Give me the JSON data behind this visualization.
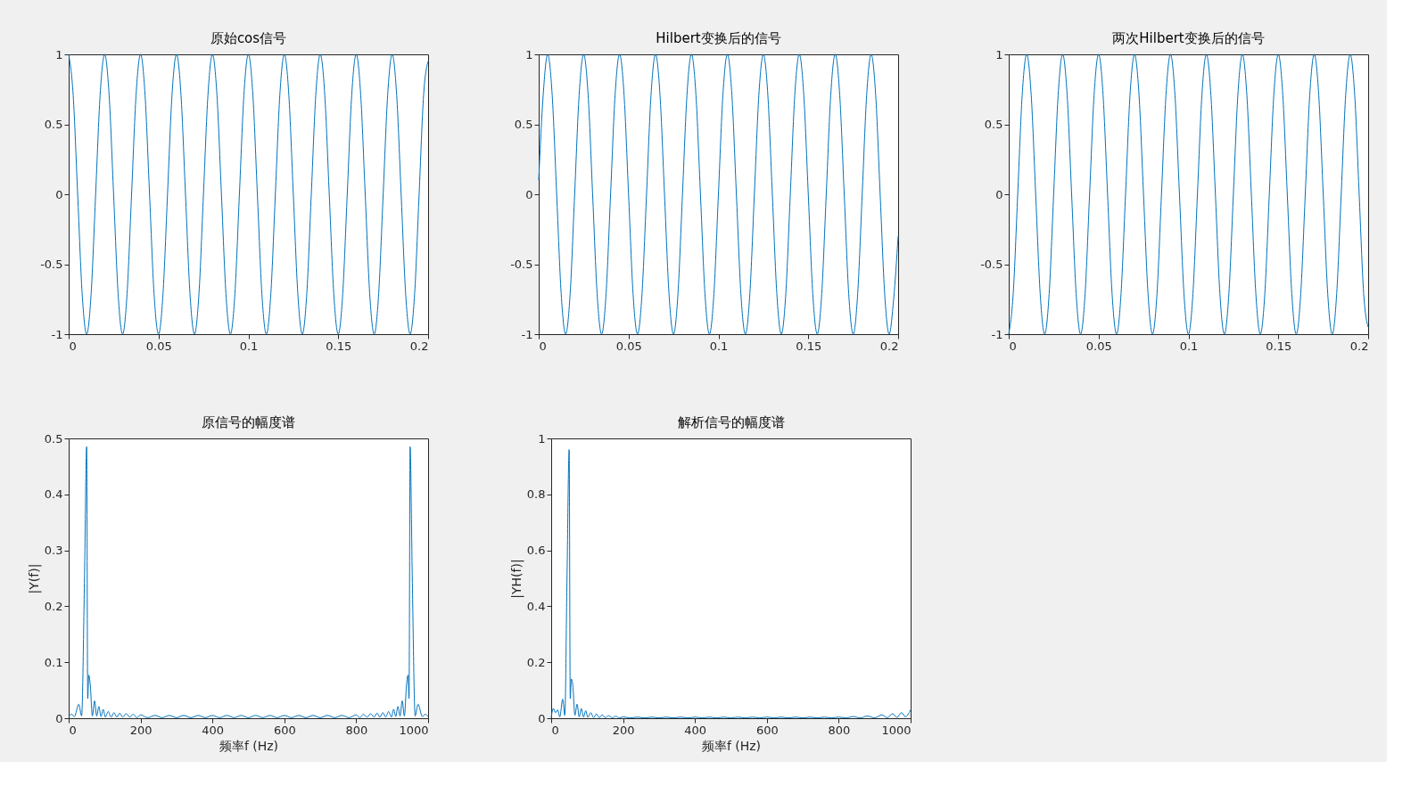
{
  "chart_data": [
    {
      "type": "line",
      "title": "原始cos信号",
      "grid": false,
      "xlim": [
        0,
        0.2
      ],
      "ylim": [
        -1,
        1
      ],
      "xticks": [
        0,
        0.05,
        0.1,
        0.15,
        0.2
      ],
      "yticks": [
        -1,
        -0.5,
        0,
        0.5,
        1
      ],
      "x": [
        0,
        0.0025,
        0.005,
        0.0075,
        0.01,
        0.0125,
        0.015,
        0.0175,
        0.02,
        0.0225,
        0.025,
        0.0275,
        0.03,
        0.0325,
        0.035,
        0.0375,
        0.04,
        0.0425,
        0.045,
        0.0475,
        0.05,
        0.0525,
        0.055,
        0.0575,
        0.06,
        0.0625,
        0.065,
        0.0675,
        0.07,
        0.0725,
        0.075,
        0.0775,
        0.08,
        0.0825,
        0.085,
        0.0875,
        0.09,
        0.0925,
        0.095,
        0.0975,
        0.1,
        0.1025,
        0.105,
        0.1075,
        0.11,
        0.1125,
        0.115,
        0.1175,
        0.12,
        0.1225,
        0.125,
        0.1275,
        0.13,
        0.1325,
        0.135,
        0.1375,
        0.14,
        0.1425,
        0.145,
        0.1475,
        0.15,
        0.1525,
        0.155,
        0.1575,
        0.16,
        0.1625,
        0.165,
        0.1675,
        0.17,
        0.1725,
        0.175,
        0.1775,
        0.18,
        0.1825,
        0.185,
        0.1875,
        0.19,
        0.1925,
        0.195,
        0.1975,
        0.2
      ],
      "series": [
        {
          "color": "#0072bd",
          "values": [
            1,
            0.71,
            0,
            -0.71,
            -1,
            -0.71,
            0,
            0.71,
            1,
            0.71,
            0,
            -0.71,
            -1,
            -0.71,
            0,
            0.71,
            1,
            0.71,
            0,
            -0.71,
            -1,
            -0.71,
            0,
            0.71,
            1,
            0.71,
            0,
            -0.71,
            -1,
            -0.71,
            0,
            0.71,
            1,
            0.71,
            0,
            -0.71,
            -1,
            -0.71,
            0,
            0.71,
            1,
            0.71,
            0,
            -0.71,
            -1,
            -0.71,
            0,
            0.71,
            1,
            0.71,
            0,
            -0.71,
            -1,
            -0.71,
            0,
            0.71,
            1,
            0.71,
            0,
            -0.71,
            -1,
            -0.71,
            0,
            0.71,
            1,
            0.71,
            0,
            -0.71,
            -1,
            -0.71,
            0,
            0.71,
            1,
            0.71,
            0,
            -0.71,
            -1,
            -0.71,
            0,
            0.71,
            0.95
          ]
        }
      ]
    },
    {
      "type": "line",
      "title": "Hilbert变换后的信号",
      "grid": false,
      "xlim": [
        0,
        0.2
      ],
      "ylim": [
        -1,
        1
      ],
      "xticks": [
        0,
        0.05,
        0.1,
        0.15,
        0.2
      ],
      "yticks": [
        -1,
        -0.5,
        0,
        0.5,
        1
      ],
      "x": [
        0,
        0.0025,
        0.005,
        0.0075,
        0.01,
        0.0125,
        0.015,
        0.0175,
        0.02,
        0.0225,
        0.025,
        0.0275,
        0.03,
        0.0325,
        0.035,
        0.0375,
        0.04,
        0.0425,
        0.045,
        0.0475,
        0.05,
        0.0525,
        0.055,
        0.0575,
        0.06,
        0.0625,
        0.065,
        0.0675,
        0.07,
        0.0725,
        0.075,
        0.0775,
        0.08,
        0.0825,
        0.085,
        0.0875,
        0.09,
        0.0925,
        0.095,
        0.0975,
        0.1,
        0.1025,
        0.105,
        0.1075,
        0.11,
        0.1125,
        0.115,
        0.1175,
        0.12,
        0.1225,
        0.125,
        0.1275,
        0.13,
        0.1325,
        0.135,
        0.1375,
        0.14,
        0.1425,
        0.145,
        0.1475,
        0.15,
        0.1525,
        0.155,
        0.1575,
        0.16,
        0.1625,
        0.165,
        0.1675,
        0.17,
        0.1725,
        0.175,
        0.1775,
        0.18,
        0.1825,
        0.185,
        0.1875,
        0.19,
        0.1925,
        0.195,
        0.1975,
        0.2
      ],
      "series": [
        {
          "color": "#0072bd",
          "values": [
            0.1,
            0.71,
            1,
            0.71,
            0,
            -0.71,
            -1,
            -0.71,
            0,
            0.71,
            1,
            0.71,
            0,
            -0.71,
            -1,
            -0.71,
            0,
            0.71,
            1,
            0.71,
            0,
            -0.71,
            -1,
            -0.71,
            0,
            0.71,
            1,
            0.71,
            0,
            -0.71,
            -1,
            -0.71,
            0,
            0.71,
            1,
            0.71,
            0,
            -0.71,
            -1,
            -0.71,
            0,
            0.71,
            1,
            0.71,
            0,
            -0.71,
            -1,
            -0.71,
            0,
            0.71,
            1,
            0.71,
            0,
            -0.71,
            -1,
            -0.71,
            0,
            0.71,
            1,
            0.71,
            0,
            -0.71,
            -1,
            -0.71,
            0,
            0.71,
            1,
            0.71,
            0,
            -0.71,
            -1,
            -0.71,
            0,
            0.71,
            1,
            0.71,
            0,
            -0.71,
            -1,
            -0.75,
            -0.3
          ]
        }
      ]
    },
    {
      "type": "line",
      "title": "两次Hilbert变换后的信号",
      "grid": false,
      "xlim": [
        0,
        0.2
      ],
      "ylim": [
        -1,
        1
      ],
      "xticks": [
        0,
        0.05,
        0.1,
        0.15,
        0.2
      ],
      "yticks": [
        -1,
        -0.5,
        0,
        0.5,
        1
      ],
      "x": [
        0,
        0.0025,
        0.005,
        0.0075,
        0.01,
        0.0125,
        0.015,
        0.0175,
        0.02,
        0.0225,
        0.025,
        0.0275,
        0.03,
        0.0325,
        0.035,
        0.0375,
        0.04,
        0.0425,
        0.045,
        0.0475,
        0.05,
        0.0525,
        0.055,
        0.0575,
        0.06,
        0.0625,
        0.065,
        0.0675,
        0.07,
        0.0725,
        0.075,
        0.0775,
        0.08,
        0.0825,
        0.085,
        0.0875,
        0.09,
        0.0925,
        0.095,
        0.0975,
        0.1,
        0.1025,
        0.105,
        0.1075,
        0.11,
        0.1125,
        0.115,
        0.1175,
        0.12,
        0.1225,
        0.125,
        0.1275,
        0.13,
        0.1325,
        0.135,
        0.1375,
        0.14,
        0.1425,
        0.145,
        0.1475,
        0.15,
        0.1525,
        0.155,
        0.1575,
        0.16,
        0.1625,
        0.165,
        0.1675,
        0.17,
        0.1725,
        0.175,
        0.1775,
        0.18,
        0.1825,
        0.185,
        0.1875,
        0.19,
        0.1925,
        0.195,
        0.1975,
        0.2
      ],
      "series": [
        {
          "color": "#0072bd",
          "values": [
            -1,
            -0.71,
            0,
            0.71,
            1,
            0.71,
            0,
            -0.71,
            -1,
            -0.71,
            0,
            0.71,
            1,
            0.71,
            0,
            -0.71,
            -1,
            -0.71,
            0,
            0.71,
            1,
            0.71,
            0,
            -0.71,
            -1,
            -0.71,
            0,
            0.71,
            1,
            0.71,
            0,
            -0.71,
            -1,
            -0.71,
            0,
            0.71,
            1,
            0.71,
            0,
            -0.71,
            -1,
            -0.71,
            0,
            0.71,
            1,
            0.71,
            0,
            -0.71,
            -1,
            -0.71,
            0,
            0.71,
            1,
            0.71,
            0,
            -0.71,
            -1,
            -0.71,
            0,
            0.71,
            1,
            0.71,
            0,
            -0.71,
            -1,
            -0.71,
            0,
            0.71,
            1,
            0.71,
            0,
            -0.71,
            -1,
            -0.71,
            0,
            0.71,
            1,
            0.71,
            0,
            -0.71,
            -0.95
          ]
        }
      ]
    },
    {
      "type": "line",
      "title": "原信号的幅度谱",
      "xlabel": "频率f (Hz)",
      "ylabel": "|Y(f)|",
      "grid": false,
      "xlim": [
        0,
        1000
      ],
      "ylim": [
        0,
        0.5
      ],
      "xticks": [
        0,
        200,
        400,
        600,
        800,
        1000
      ],
      "yticks": [
        0,
        0.1,
        0.2,
        0.3,
        0.4,
        0.5
      ],
      "x": [
        0,
        8,
        16,
        28,
        36,
        44,
        50,
        53,
        56,
        60,
        66,
        72,
        78,
        84,
        90,
        96,
        102,
        110,
        118,
        126,
        134,
        142,
        150,
        160,
        170,
        180,
        190,
        200,
        220,
        240,
        260,
        280,
        300,
        320,
        340,
        360,
        380,
        400,
        420,
        440,
        460,
        480,
        500,
        520,
        540,
        560,
        580,
        600,
        620,
        640,
        660,
        680,
        700,
        720,
        740,
        760,
        780,
        800,
        810,
        820,
        830,
        840,
        850,
        858,
        866,
        874,
        882,
        890,
        898,
        904,
        910,
        916,
        922,
        928,
        934,
        940,
        944,
        947,
        950,
        956,
        964,
        972,
        984,
        992,
        1000
      ],
      "series": [
        {
          "color": "#0072bd",
          "values": [
            0.003,
            0.007,
            0.003,
            0.025,
            0.004,
            0.25,
            0.485,
            0.035,
            0.077,
            0.06,
            0.004,
            0.031,
            0.004,
            0.021,
            0.003,
            0.016,
            0.002,
            0.012,
            0.002,
            0.01,
            0.002,
            0.009,
            0.002,
            0.008,
            0.002,
            0.007,
            0.001,
            0.006,
            0.001,
            0.005,
            0.001,
            0.005,
            0.001,
            0.005,
            0.001,
            0.005,
            0.001,
            0.005,
            0.001,
            0.005,
            0.001,
            0.005,
            0.001,
            0.005,
            0.001,
            0.005,
            0.001,
            0.005,
            0.001,
            0.005,
            0.001,
            0.005,
            0.001,
            0.005,
            0.001,
            0.005,
            0.001,
            0.006,
            0.001,
            0.007,
            0.002,
            0.008,
            0.002,
            0.009,
            0.002,
            0.01,
            0.002,
            0.012,
            0.002,
            0.016,
            0.003,
            0.021,
            0.004,
            0.031,
            0.004,
            0.06,
            0.077,
            0.035,
            0.485,
            0.25,
            0.004,
            0.025,
            0.003,
            0.007,
            0.003
          ]
        }
      ]
    },
    {
      "type": "line",
      "title": "解析信号的幅度谱",
      "xlabel": "频率f (Hz)",
      "ylabel": "|YH(f)|",
      "grid": false,
      "xlim": [
        0,
        1000
      ],
      "ylim": [
        0,
        1
      ],
      "xticks": [
        0,
        200,
        400,
        600,
        800,
        1000
      ],
      "yticks": [
        0,
        0.2,
        0.4,
        0.6,
        0.8,
        1
      ],
      "x": [
        0,
        6,
        12,
        18,
        24,
        32,
        38,
        44,
        50,
        53,
        56,
        60,
        66,
        72,
        78,
        84,
        90,
        96,
        102,
        110,
        118,
        126,
        134,
        142,
        150,
        160,
        170,
        180,
        190,
        200,
        220,
        240,
        260,
        280,
        300,
        320,
        340,
        360,
        380,
        400,
        420,
        440,
        460,
        480,
        500,
        520,
        540,
        560,
        580,
        600,
        620,
        640,
        660,
        680,
        700,
        720,
        740,
        760,
        780,
        800,
        820,
        840,
        860,
        880,
        900,
        920,
        935,
        950,
        962,
        975,
        985,
        1000
      ],
      "series": [
        {
          "color": "#0072bd",
          "values": [
            0.003,
            0.035,
            0.02,
            0.03,
            0.005,
            0.068,
            0.01,
            0.5,
            0.96,
            0.07,
            0.14,
            0.12,
            0.01,
            0.05,
            0.005,
            0.035,
            0.004,
            0.027,
            0.003,
            0.02,
            0.002,
            0.015,
            0.002,
            0.012,
            0.002,
            0.009,
            0.002,
            0.007,
            0.001,
            0.005,
            0.001,
            0.004,
            0.001,
            0.004,
            0.001,
            0.004,
            0.001,
            0.004,
            0.001,
            0.004,
            0.001,
            0.004,
            0.001,
            0.004,
            0.001,
            0.004,
            0.001,
            0.004,
            0.001,
            0.004,
            0.001,
            0.004,
            0.001,
            0.004,
            0.001,
            0.004,
            0.001,
            0.004,
            0.001,
            0.004,
            0.001,
            0.006,
            0.001,
            0.008,
            0.001,
            0.012,
            0.002,
            0.016,
            0.003,
            0.02,
            0.005,
            0.03
          ]
        }
      ]
    }
  ]
}
